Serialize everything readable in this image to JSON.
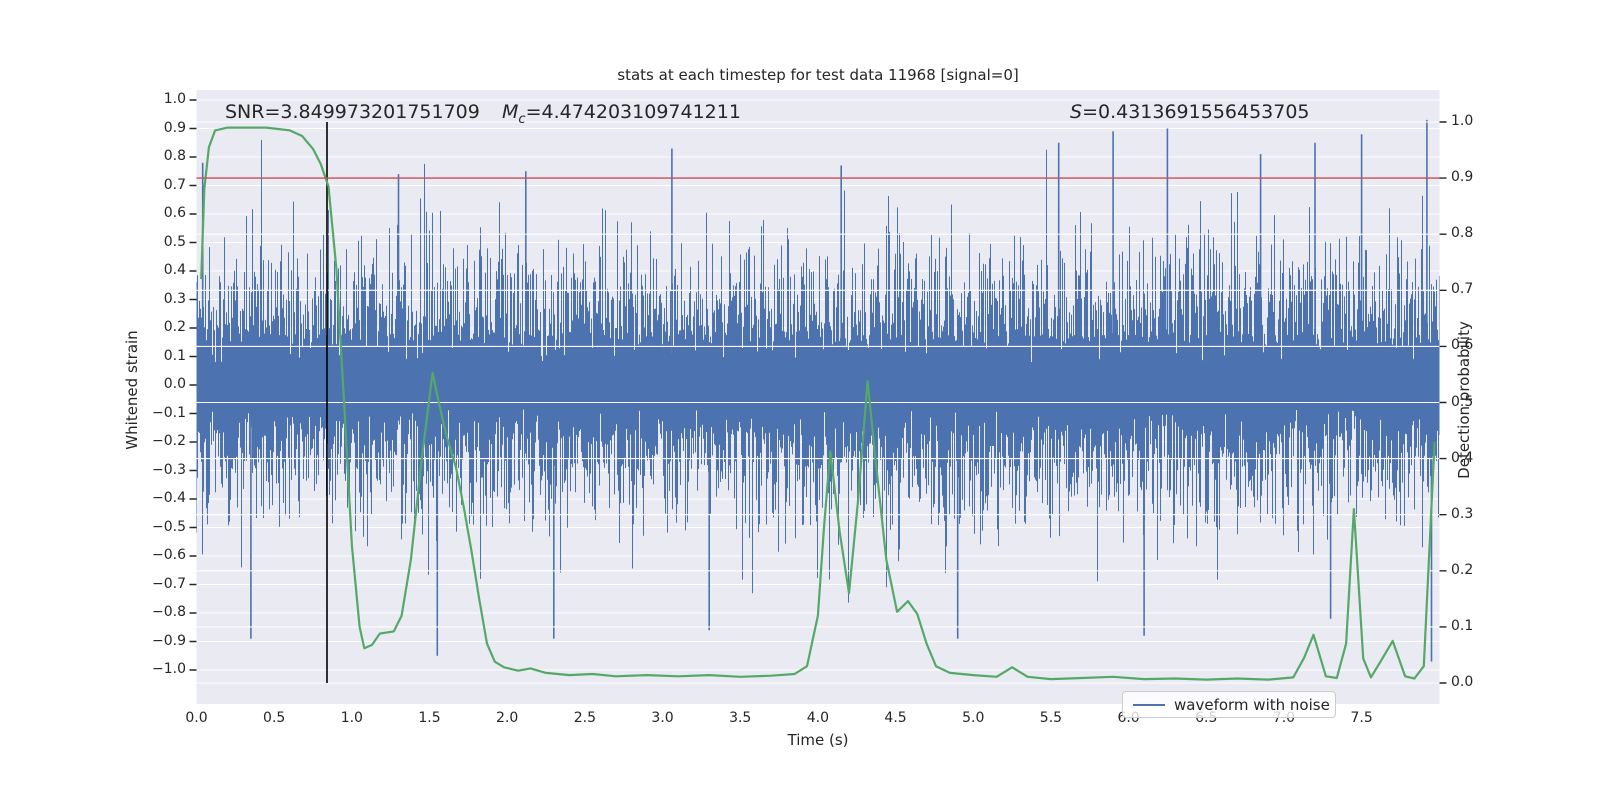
{
  "title": "stats at each timestep for test data 11968 [signal=0]",
  "annotations": {
    "snr": "SNR=3.849973201751709",
    "mc_symbol": "M",
    "mc_sub": "c",
    "mc_value": "=4.474203109741211",
    "s_symbol": "S",
    "s_value": "=0.4313691556453705"
  },
  "legend": {
    "label": "waveform with noise"
  },
  "colors": {
    "figure_bg": "#ffffff",
    "plot_bg": "#eaeaf2",
    "grid": "#ffffff",
    "waveform": "#4c72b0",
    "probability": "#55a868",
    "threshold": "#c44e52",
    "event_line": "#000000",
    "text": "#262626"
  },
  "axes": {
    "x": {
      "label": "Time (s)",
      "tick_values": [
        0.0,
        0.5,
        1.0,
        1.5,
        2.0,
        2.5,
        3.0,
        3.5,
        4.0,
        4.5,
        5.0,
        5.5,
        6.0,
        6.5,
        7.0,
        7.5
      ],
      "tick_labels": [
        "0.0",
        "0.5",
        "1.0",
        "1.5",
        "2.0",
        "2.5",
        "3.0",
        "3.5",
        "4.0",
        "4.5",
        "5.0",
        "5.5",
        "6.0",
        "6.5",
        "7.0",
        "7.5"
      ],
      "range": [
        0.0,
        8.0
      ]
    },
    "left": {
      "label": "Whitened strain",
      "tick_values": [
        1.0,
        0.9,
        0.8,
        0.7,
        0.6,
        0.5,
        0.4,
        0.3,
        0.2,
        0.1,
        0.0,
        -0.1,
        -0.2,
        -0.3,
        -0.4,
        -0.5,
        -0.6,
        -0.7,
        -0.8,
        -0.9,
        -1.0
      ],
      "tick_labels": [
        "1.0",
        "0.9",
        "0.8",
        "0.7",
        "0.6",
        "0.5",
        "0.4",
        "0.3",
        "0.2",
        "0.1",
        "0.0",
        "−0.1",
        "−0.2",
        "−0.3",
        "−0.4",
        "−0.5",
        "−0.6",
        "−0.7",
        "−0.8",
        "−0.9",
        "−1.0"
      ],
      "range": [
        -1.12,
        1.04
      ]
    },
    "right": {
      "label": "Detection probability",
      "tick_values": [
        1.0,
        0.9,
        0.8,
        0.7,
        0.6,
        0.5,
        0.4,
        0.3,
        0.2,
        0.1,
        0.0
      ],
      "tick_labels": [
        "1.0",
        "0.9",
        "0.8",
        "0.7",
        "0.6",
        "0.5",
        "0.4",
        "0.3",
        "0.2",
        "0.1",
        "0.0"
      ],
      "range": [
        -0.04,
        1.06
      ]
    }
  },
  "chart_data": {
    "type": "line",
    "title": "stats at each timestep for test data 11968 [signal=0]",
    "xlabel": "Time (s)",
    "ylabel_left": "Whitened strain",
    "ylabel_right": "Detection probability",
    "xlim": [
      0.0,
      8.0
    ],
    "ylim_left": [
      -1.12,
      1.04
    ],
    "ylim_right": [
      -0.04,
      1.06
    ],
    "grid": true,
    "legend_position": "lower right",
    "threshold_line": {
      "axis": "right",
      "value": 0.9,
      "color": "#c44e52"
    },
    "event_line": {
      "x": 0.84,
      "span_right_axis": [
        0.0,
        1.0
      ],
      "color": "#000000"
    },
    "series": [
      {
        "name": "waveform with noise",
        "axis": "left",
        "color": "#4c72b0",
        "type": "noise_band",
        "description": "dense whitened-noise strain; unreadable point-by-point, characterized by envelope",
        "sigma": 0.22,
        "samples_per_pixel": 3,
        "seed": 20231968,
        "core_band": [
          -0.15,
          0.15
        ],
        "typical_extent": [
          -0.7,
          0.7
        ],
        "notable_spikes": [
          [
            0.04,
            0.78
          ],
          [
            0.35,
            -0.89
          ],
          [
            1.3,
            0.74
          ],
          [
            1.55,
            -0.95
          ],
          [
            2.12,
            0.75
          ],
          [
            2.3,
            -0.89
          ],
          [
            3.06,
            0.83
          ],
          [
            3.3,
            -0.86
          ],
          [
            4.15,
            0.77
          ],
          [
            4.9,
            -0.89
          ],
          [
            5.55,
            0.85
          ],
          [
            5.9,
            0.89
          ],
          [
            6.1,
            -0.88
          ],
          [
            6.25,
            0.9
          ],
          [
            6.85,
            0.81
          ],
          [
            7.2,
            0.85
          ],
          [
            7.3,
            -0.82
          ],
          [
            7.5,
            0.88
          ],
          [
            7.92,
            0.93
          ],
          [
            7.95,
            -0.97
          ]
        ]
      },
      {
        "name": "detection probability",
        "axis": "right",
        "color": "#55a868",
        "type": "line",
        "points": [
          [
            0.03,
            0.72
          ],
          [
            0.05,
            0.88
          ],
          [
            0.08,
            0.955
          ],
          [
            0.12,
            0.985
          ],
          [
            0.2,
            0.99
          ],
          [
            0.3,
            0.99
          ],
          [
            0.45,
            0.99
          ],
          [
            0.6,
            0.985
          ],
          [
            0.68,
            0.975
          ],
          [
            0.75,
            0.952
          ],
          [
            0.8,
            0.925
          ],
          [
            0.85,
            0.885
          ],
          [
            0.9,
            0.74
          ],
          [
            0.95,
            0.5
          ],
          [
            1.0,
            0.245
          ],
          [
            1.05,
            0.1
          ],
          [
            1.08,
            0.062
          ],
          [
            1.13,
            0.068
          ],
          [
            1.18,
            0.088
          ],
          [
            1.27,
            0.092
          ],
          [
            1.32,
            0.12
          ],
          [
            1.38,
            0.22
          ],
          [
            1.45,
            0.4
          ],
          [
            1.52,
            0.553
          ],
          [
            1.56,
            0.5
          ],
          [
            1.61,
            0.44
          ],
          [
            1.67,
            0.385
          ],
          [
            1.72,
            0.314
          ],
          [
            1.77,
            0.235
          ],
          [
            1.82,
            0.15
          ],
          [
            1.87,
            0.07
          ],
          [
            1.92,
            0.038
          ],
          [
            1.98,
            0.028
          ],
          [
            2.07,
            0.022
          ],
          [
            2.15,
            0.026
          ],
          [
            2.25,
            0.018
          ],
          [
            2.4,
            0.014
          ],
          [
            2.55,
            0.016
          ],
          [
            2.7,
            0.012
          ],
          [
            2.9,
            0.014
          ],
          [
            3.1,
            0.012
          ],
          [
            3.3,
            0.014
          ],
          [
            3.5,
            0.011
          ],
          [
            3.7,
            0.013
          ],
          [
            3.85,
            0.016
          ],
          [
            3.93,
            0.03
          ],
          [
            4.0,
            0.12
          ],
          [
            4.04,
            0.28
          ],
          [
            4.08,
            0.413
          ],
          [
            4.14,
            0.27
          ],
          [
            4.2,
            0.16
          ],
          [
            4.26,
            0.33
          ],
          [
            4.32,
            0.538
          ],
          [
            4.37,
            0.4
          ],
          [
            4.44,
            0.22
          ],
          [
            4.51,
            0.127
          ],
          [
            4.58,
            0.146
          ],
          [
            4.64,
            0.123
          ],
          [
            4.7,
            0.07
          ],
          [
            4.76,
            0.03
          ],
          [
            4.85,
            0.018
          ],
          [
            5.0,
            0.014
          ],
          [
            5.15,
            0.011
          ],
          [
            5.25,
            0.028
          ],
          [
            5.35,
            0.011
          ],
          [
            5.5,
            0.007
          ],
          [
            5.7,
            0.009
          ],
          [
            5.9,
            0.011
          ],
          [
            6.1,
            0.007
          ],
          [
            6.3,
            0.008
          ],
          [
            6.5,
            0.006
          ],
          [
            6.7,
            0.008
          ],
          [
            6.9,
            0.006
          ],
          [
            7.06,
            0.01
          ],
          [
            7.13,
            0.045
          ],
          [
            7.19,
            0.086
          ],
          [
            7.27,
            0.012
          ],
          [
            7.34,
            0.009
          ],
          [
            7.4,
            0.07
          ],
          [
            7.45,
            0.31
          ],
          [
            7.51,
            0.044
          ],
          [
            7.56,
            0.01
          ],
          [
            7.63,
            0.042
          ],
          [
            7.7,
            0.075
          ],
          [
            7.78,
            0.012
          ],
          [
            7.84,
            0.008
          ],
          [
            7.9,
            0.03
          ],
          [
            7.94,
            0.26
          ],
          [
            7.97,
            0.43
          ]
        ]
      }
    ]
  }
}
